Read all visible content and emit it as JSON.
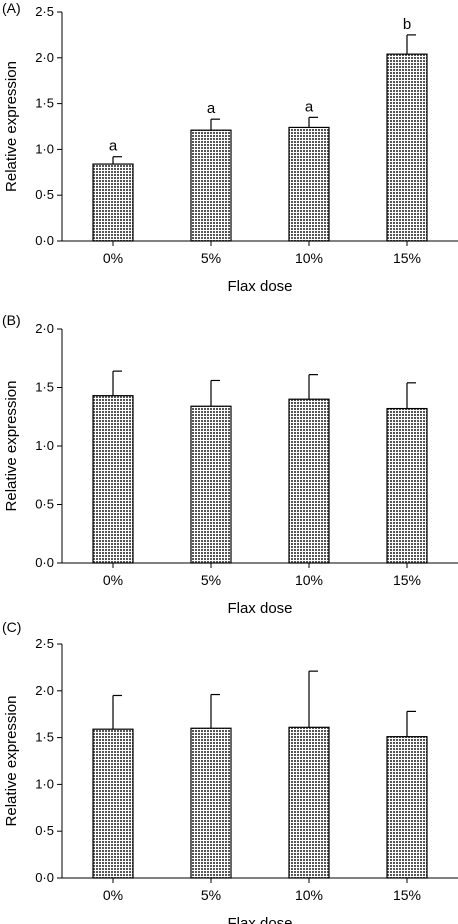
{
  "chart_data": [
    {
      "type": "bar",
      "panel_label": "(A)",
      "categories": [
        "0%",
        "5%",
        "10%",
        "15%"
      ],
      "values": [
        0.84,
        1.21,
        1.24,
        2.04
      ],
      "errors": [
        0.08,
        0.12,
        0.11,
        0.21
      ],
      "significance_letters": [
        "a",
        "a",
        "a",
        "b"
      ],
      "xlabel": "Flax dose",
      "ylabel": "Relative expression",
      "ylim": [
        0,
        2.5
      ],
      "yticks": [
        "0·0",
        "0·5",
        "1·0",
        "1·5",
        "2·0",
        "2·5"
      ],
      "grid": false
    },
    {
      "type": "bar",
      "panel_label": "(B)",
      "categories": [
        "0%",
        "5%",
        "10%",
        "15%"
      ],
      "values": [
        1.43,
        1.34,
        1.4,
        1.32
      ],
      "errors": [
        0.21,
        0.22,
        0.21,
        0.22
      ],
      "significance_letters": [],
      "xlabel": "Flax dose",
      "ylabel": "Relative expression",
      "ylim": [
        0,
        2.0
      ],
      "yticks": [
        "0·0",
        "0·5",
        "1·0",
        "1·5",
        "2·0"
      ],
      "grid": false
    },
    {
      "type": "bar",
      "panel_label": "(C)",
      "categories": [
        "0%",
        "5%",
        "10%",
        "15%"
      ],
      "values": [
        1.59,
        1.6,
        1.61,
        1.51
      ],
      "errors": [
        0.36,
        0.36,
        0.6,
        0.27
      ],
      "significance_letters": [],
      "xlabel": "Flax dose",
      "ylabel": "Relative expression",
      "ylim": [
        0,
        2.5
      ],
      "yticks": [
        "0·0",
        "0·5",
        "1·0",
        "1·5",
        "2·0",
        "2·5"
      ],
      "grid": false
    }
  ],
  "colors": {
    "bar_fill": "#9a9a9a",
    "bar_stroke": "#000000",
    "axis": "#000000"
  }
}
